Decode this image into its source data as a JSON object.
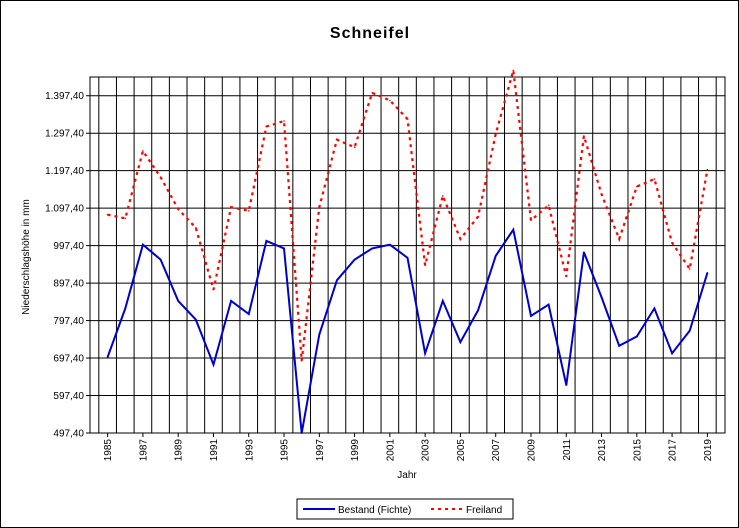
{
  "chart_data": {
    "type": "line",
    "title": "Schneifel",
    "xlabel": "Jahr",
    "ylabel": "Niederschlagshöhe in mm",
    "x": [
      1985,
      1986,
      1987,
      1988,
      1989,
      1990,
      1991,
      1992,
      1993,
      1994,
      1995,
      1996,
      1997,
      1998,
      1999,
      2000,
      2001,
      2002,
      2003,
      2004,
      2005,
      2006,
      2007,
      2008,
      2009,
      2010,
      2011,
      2012,
      2013,
      2014,
      2015,
      2016,
      2017,
      2018,
      2019
    ],
    "x_tick_labels": [
      "1985",
      "1987",
      "1989",
      "1991",
      "1993",
      "1995",
      "1997",
      "1999",
      "2001",
      "2003",
      "2005",
      "2007",
      "2009",
      "2011",
      "2013",
      "2015",
      "2017",
      "2019"
    ],
    "y_tick_values": [
      497.4,
      597.4,
      697.4,
      797.4,
      897.4,
      997.4,
      1097.4,
      1197.4,
      1297.4,
      1397.4
    ],
    "y_tick_labels": [
      "497,40",
      "597,40",
      "697,40",
      "797,40",
      "897,40",
      "997,40",
      "1.097,40",
      "1.197,40",
      "1.297,40",
      "1.397,40"
    ],
    "ylim": [
      497.4,
      1447.4
    ],
    "grid": true,
    "legend_position": "bottom",
    "series": [
      {
        "name": "Bestand (Fichte)",
        "color": "#0000cc",
        "dash": "solid",
        "values": [
          700,
          830,
          1000,
          960,
          850,
          800,
          680,
          850,
          815,
          1010,
          990,
          497,
          760,
          905,
          960,
          990,
          1000,
          965,
          710,
          850,
          740,
          825,
          970,
          1040,
          810,
          840,
          625,
          980,
          860,
          730,
          755,
          830,
          710,
          770,
          925
        ]
      },
      {
        "name": "Freiland",
        "color": "#ff0000",
        "dash": "dotted",
        "values": [
          1080,
          1070,
          1250,
          1180,
          1095,
          1045,
          880,
          1100,
          1090,
          1315,
          1330,
          690,
          1100,
          1280,
          1260,
          1405,
          1385,
          1335,
          945,
          1130,
          1015,
          1075,
          1295,
          1465,
          1065,
          1105,
          915,
          1290,
          1135,
          1015,
          1155,
          1175,
          1005,
          935,
          1200
        ]
      }
    ]
  }
}
